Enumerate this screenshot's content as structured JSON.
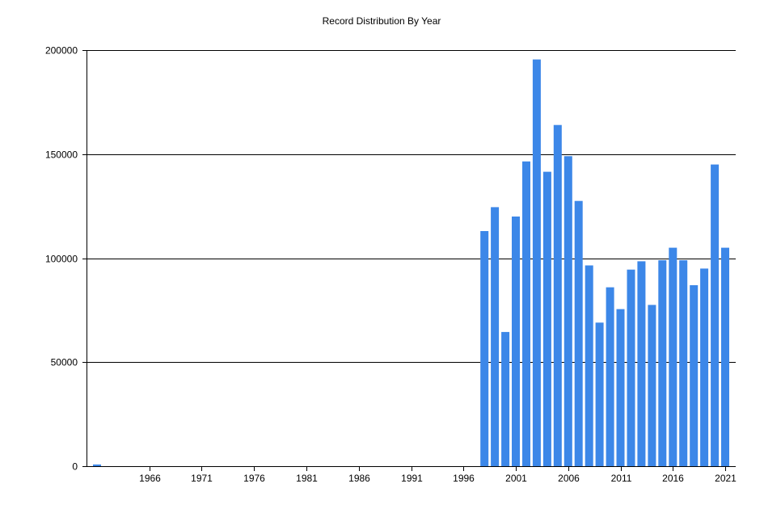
{
  "chart_data": {
    "type": "bar",
    "title": "Record Distribution By Year",
    "xlabel": "",
    "ylabel": "",
    "ylim": [
      0,
      200000
    ],
    "grid": true,
    "y_ticks": [
      0,
      50000,
      100000,
      150000,
      200000
    ],
    "x_tick_labels": [
      "1966",
      "1971",
      "1976",
      "1981",
      "1986",
      "1991",
      "1996",
      "2001",
      "2006",
      "2011",
      "2016",
      "2021"
    ],
    "bar_color": "#3c87e8",
    "categories": [
      1961,
      1998,
      1999,
      2000,
      2001,
      2002,
      2003,
      2004,
      2005,
      2006,
      2007,
      2008,
      2009,
      2010,
      2011,
      2012,
      2013,
      2014,
      2015,
      2016,
      2017,
      2018,
      2019,
      2020,
      2021
    ],
    "values": [
      800,
      113000,
      124500,
      64500,
      120000,
      146500,
      195500,
      141500,
      164000,
      149000,
      127500,
      96500,
      69000,
      86000,
      75500,
      94500,
      98500,
      77500,
      99000,
      105000,
      99000,
      87000,
      95000,
      145000,
      105000
    ]
  }
}
